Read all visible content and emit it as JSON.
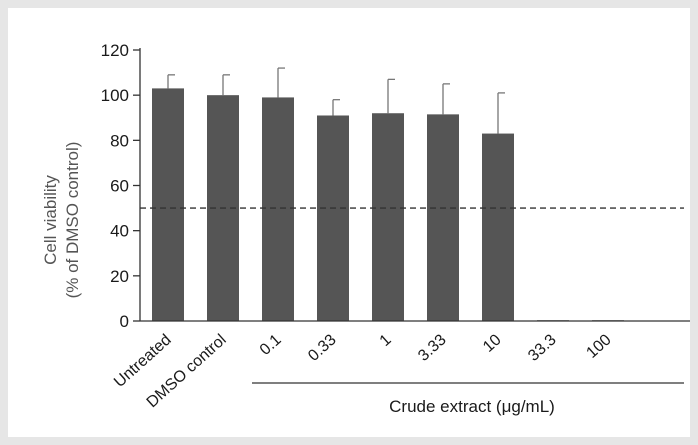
{
  "chart_data": {
    "type": "bar",
    "ylabel_line1": "Cell viability",
    "ylabel_line2": "(% of DMSO control)",
    "ylim": [
      0,
      120
    ],
    "yticks": [
      0,
      20,
      40,
      60,
      80,
      100,
      120
    ],
    "categories": [
      "Untreated",
      "DMSO control",
      "0.1",
      "0.33",
      "1",
      "3.33",
      "10",
      "33.3",
      "100"
    ],
    "values": [
      103,
      100,
      99,
      91,
      92,
      91.5,
      83,
      0.3,
      0.2
    ],
    "errors": [
      6,
      9,
      13,
      7,
      15,
      13.5,
      18,
      0,
      0
    ],
    "reference_line": 50,
    "group_label": "Crude extract (μg/mL)",
    "group_start_index": 2,
    "bar_color": "#555555",
    "grid": false,
    "legend": "none"
  }
}
